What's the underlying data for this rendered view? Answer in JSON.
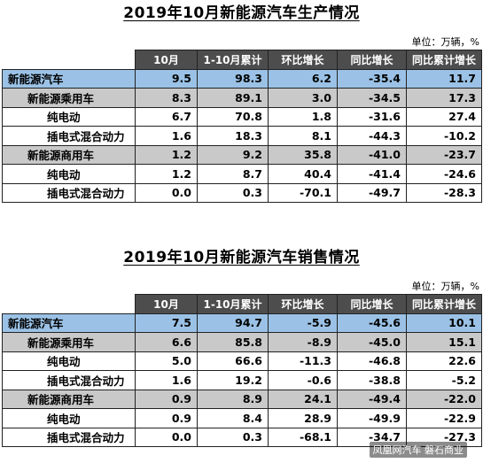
{
  "tables": [
    {
      "title": "2019年10月新能源汽车生产情况",
      "unit": "单位：万辆，%",
      "headers": [
        "",
        "10月",
        "1-10月累计",
        "环比增长",
        "同比增长",
        "同比累计增长"
      ],
      "rows": [
        {
          "level": 0,
          "cells": [
            "新能源汽车",
            "9.5",
            "98.3",
            "6.2",
            "-35.4",
            "11.7"
          ]
        },
        {
          "level": 1,
          "cells": [
            "新能源乘用车",
            "8.3",
            "89.1",
            "3.0",
            "-34.5",
            "17.3"
          ]
        },
        {
          "level": 2,
          "cells": [
            "纯电动",
            "6.7",
            "70.8",
            "1.8",
            "-31.6",
            "27.4"
          ]
        },
        {
          "level": 2,
          "cells": [
            "插电式混合动力",
            "1.6",
            "18.3",
            "8.1",
            "-44.3",
            "-10.2"
          ]
        },
        {
          "level": 1,
          "cells": [
            "新能源商用车",
            "1.2",
            "9.2",
            "35.8",
            "-41.0",
            "-23.7"
          ]
        },
        {
          "level": 2,
          "cells": [
            "纯电动",
            "1.2",
            "8.7",
            "40.4",
            "-41.4",
            "-24.6"
          ]
        },
        {
          "level": 2,
          "cells": [
            "插电式混合动力",
            "0.0",
            "0.3",
            "-70.1",
            "-49.7",
            "-28.3"
          ]
        }
      ]
    },
    {
      "title": "2019年10月新能源汽车销售情况",
      "unit": "单位：万辆，%",
      "headers": [
        "",
        "10月",
        "1-10月累计",
        "环比增长",
        "同比增长",
        "同比累计增长"
      ],
      "rows": [
        {
          "level": 0,
          "cells": [
            "新能源汽车",
            "7.5",
            "94.7",
            "-5.9",
            "-45.6",
            "10.1"
          ]
        },
        {
          "level": 1,
          "cells": [
            "新能源乘用车",
            "6.6",
            "85.8",
            "-8.9",
            "-45.0",
            "15.1"
          ]
        },
        {
          "level": 2,
          "cells": [
            "纯电动",
            "5.0",
            "66.6",
            "-11.3",
            "-46.8",
            "22.6"
          ]
        },
        {
          "level": 2,
          "cells": [
            "插电式混合动力",
            "1.6",
            "19.2",
            "-0.6",
            "-38.8",
            "-5.2"
          ]
        },
        {
          "level": 1,
          "cells": [
            "新能源商用车",
            "0.9",
            "8.9",
            "24.1",
            "-49.4",
            "-22.0"
          ]
        },
        {
          "level": 2,
          "cells": [
            "纯电动",
            "0.9",
            "8.4",
            "28.9",
            "-49.9",
            "-22.9"
          ]
        },
        {
          "level": 2,
          "cells": [
            "插电式混合动力",
            "0.0",
            "0.3",
            "-68.1",
            "-34.7",
            "-27.3"
          ]
        }
      ]
    }
  ],
  "watermark": "凤凰网汽车 磐石商业"
}
